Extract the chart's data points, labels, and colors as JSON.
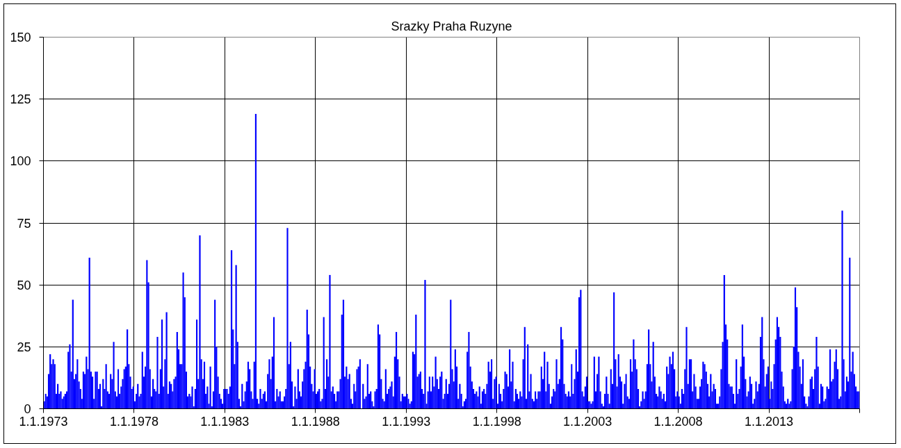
{
  "chart_data": {
    "type": "bar",
    "title": "Srazky Praha Ruzyne",
    "color": "#0000ff",
    "grid": true,
    "xlim": [
      "1973-01-01",
      "2018-01-01"
    ],
    "xticks": [
      {
        "value": "1973-01-01",
        "label": "1.1.1973"
      },
      {
        "value": "1978-01-01",
        "label": "1.1.1978"
      },
      {
        "value": "1983-01-01",
        "label": "1.1.1983"
      },
      {
        "value": "1988-01-01",
        "label": "1.1.1988"
      },
      {
        "value": "1993-01-01",
        "label": "1.1.1993"
      },
      {
        "value": "1998-01-01",
        "label": "1.1.1998"
      },
      {
        "value": "2003-01-01",
        "label": "1.1.2003"
      },
      {
        "value": "2008-01-01",
        "label": "1.1.2008"
      },
      {
        "value": "2013-01-01",
        "label": "1.1.2013"
      },
      {
        "value": "2018-01-01",
        "label": null
      }
    ],
    "ylim": [
      0,
      150
    ],
    "yticks": [
      0,
      25,
      50,
      75,
      100,
      125,
      150
    ],
    "x": [
      "1973-01",
      "1973-02",
      "1973-03",
      "1973-04",
      "1973-05",
      "1973-06",
      "1973-07",
      "1973-08",
      "1973-09",
      "1973-10",
      "1973-11",
      "1973-12",
      "1974-01",
      "1974-02",
      "1974-03",
      "1974-04",
      "1974-05",
      "1974-06",
      "1974-07",
      "1974-08",
      "1974-09",
      "1974-10",
      "1974-11",
      "1974-12",
      "1975-01",
      "1975-02",
      "1975-03",
      "1975-04",
      "1975-05",
      "1975-06",
      "1975-07",
      "1975-08",
      "1975-09",
      "1975-10",
      "1975-11",
      "1975-12",
      "1976-01",
      "1976-02",
      "1976-03",
      "1976-04",
      "1976-05",
      "1976-06",
      "1976-07",
      "1976-08",
      "1976-09",
      "1976-10",
      "1976-11",
      "1976-12",
      "1977-01",
      "1977-02",
      "1977-03",
      "1977-04",
      "1977-05",
      "1977-06",
      "1977-07",
      "1977-08",
      "1977-09",
      "1977-10",
      "1977-11",
      "1977-12",
      "1978-01",
      "1978-02",
      "1978-03",
      "1978-04",
      "1978-05",
      "1978-06",
      "1978-07",
      "1978-08",
      "1978-09",
      "1978-10",
      "1978-11",
      "1978-12",
      "1979-01",
      "1979-02",
      "1979-03",
      "1979-04",
      "1979-05",
      "1979-06",
      "1979-07",
      "1979-08",
      "1979-09",
      "1979-10",
      "1979-11",
      "1979-12",
      "1980-01",
      "1980-02",
      "1980-03",
      "1980-04",
      "1980-05",
      "1980-06",
      "1980-07",
      "1980-08",
      "1980-09",
      "1980-10",
      "1980-11",
      "1980-12",
      "1981-01",
      "1981-02",
      "1981-03",
      "1981-04",
      "1981-05",
      "1981-06",
      "1981-07",
      "1981-08",
      "1981-09",
      "1981-10",
      "1981-11",
      "1981-12",
      "1982-01",
      "1982-02",
      "1982-03",
      "1982-04",
      "1982-05",
      "1982-06",
      "1982-07",
      "1982-08",
      "1982-09",
      "1982-10",
      "1982-11",
      "1982-12",
      "1983-01",
      "1983-02",
      "1983-03",
      "1983-04",
      "1983-05",
      "1983-06",
      "1983-07",
      "1983-08",
      "1983-09",
      "1983-10",
      "1983-11",
      "1983-12",
      "1984-01",
      "1984-02",
      "1984-03",
      "1984-04",
      "1984-05",
      "1984-06",
      "1984-07",
      "1984-08",
      "1984-09",
      "1984-10",
      "1984-11",
      "1984-12",
      "1985-01",
      "1985-02",
      "1985-03",
      "1985-04",
      "1985-05",
      "1985-06",
      "1985-07",
      "1985-08",
      "1985-09",
      "1985-10",
      "1985-11",
      "1985-12",
      "1986-01",
      "1986-02",
      "1986-03",
      "1986-04",
      "1986-05",
      "1986-06",
      "1986-07",
      "1986-08",
      "1986-09",
      "1986-10",
      "1986-11",
      "1986-12",
      "1987-01",
      "1987-02",
      "1987-03",
      "1987-04",
      "1987-05",
      "1987-06",
      "1987-07",
      "1987-08",
      "1987-09",
      "1987-10",
      "1987-11",
      "1987-12",
      "1988-01",
      "1988-02",
      "1988-03",
      "1988-04",
      "1988-05",
      "1988-06",
      "1988-07",
      "1988-08",
      "1988-09",
      "1988-10",
      "1988-11",
      "1988-12",
      "1989-01",
      "1989-02",
      "1989-03",
      "1989-04",
      "1989-05",
      "1989-06",
      "1989-07",
      "1989-08",
      "1989-09",
      "1989-10",
      "1989-11",
      "1989-12",
      "1990-01",
      "1990-02",
      "1990-03",
      "1990-04",
      "1990-05",
      "1990-06",
      "1990-07",
      "1990-08",
      "1990-09",
      "1990-10",
      "1990-11",
      "1990-12",
      "1991-01",
      "1991-02",
      "1991-03",
      "1991-04",
      "1991-05",
      "1991-06",
      "1991-07",
      "1991-08",
      "1991-09",
      "1991-10",
      "1991-11",
      "1991-12",
      "1992-01",
      "1992-02",
      "1992-03",
      "1992-04",
      "1992-05",
      "1992-06",
      "1992-07",
      "1992-08",
      "1992-09",
      "1992-10",
      "1992-11",
      "1992-12",
      "1993-01",
      "1993-02",
      "1993-03",
      "1993-04",
      "1993-05",
      "1993-06",
      "1993-07",
      "1993-08",
      "1993-09",
      "1993-10",
      "1993-11",
      "1993-12",
      "1994-01",
      "1994-02",
      "1994-03",
      "1994-04",
      "1994-05",
      "1994-06",
      "1994-07",
      "1994-08",
      "1994-09",
      "1994-10",
      "1994-11",
      "1994-12",
      "1995-01",
      "1995-02",
      "1995-03",
      "1995-04",
      "1995-05",
      "1995-06",
      "1995-07",
      "1995-08",
      "1995-09",
      "1995-10",
      "1995-11",
      "1995-12",
      "1996-01",
      "1996-02",
      "1996-03",
      "1996-04",
      "1996-05",
      "1996-06",
      "1996-07",
      "1996-08",
      "1996-09",
      "1996-10",
      "1996-11",
      "1996-12",
      "1997-01",
      "1997-02",
      "1997-03",
      "1997-04",
      "1997-05",
      "1997-06",
      "1997-07",
      "1997-08",
      "1997-09",
      "1997-10",
      "1997-11",
      "1997-12",
      "1998-01",
      "1998-02",
      "1998-03",
      "1998-04",
      "1998-05",
      "1998-06",
      "1998-07",
      "1998-08",
      "1998-09",
      "1998-10",
      "1998-11",
      "1998-12",
      "1999-01",
      "1999-02",
      "1999-03",
      "1999-04",
      "1999-05",
      "1999-06",
      "1999-07",
      "1999-08",
      "1999-09",
      "1999-10",
      "1999-11",
      "1999-12",
      "2000-01",
      "2000-02",
      "2000-03",
      "2000-04",
      "2000-05",
      "2000-06",
      "2000-07",
      "2000-08",
      "2000-09",
      "2000-10",
      "2000-11",
      "2000-12",
      "2001-01",
      "2001-02",
      "2001-03",
      "2001-04",
      "2001-05",
      "2001-06",
      "2001-07",
      "2001-08",
      "2001-09",
      "2001-10",
      "2001-11",
      "2001-12",
      "2002-01",
      "2002-02",
      "2002-03",
      "2002-04",
      "2002-05",
      "2002-06",
      "2002-07",
      "2002-08",
      "2002-09",
      "2002-10",
      "2002-11",
      "2002-12",
      "2003-01",
      "2003-02",
      "2003-03",
      "2003-04",
      "2003-05",
      "2003-06",
      "2003-07",
      "2003-08",
      "2003-09",
      "2003-10",
      "2003-11",
      "2003-12",
      "2004-01",
      "2004-02",
      "2004-03",
      "2004-04",
      "2004-05",
      "2004-06",
      "2004-07",
      "2004-08",
      "2004-09",
      "2004-10",
      "2004-11",
      "2004-12",
      "2005-01",
      "2005-02",
      "2005-03",
      "2005-04",
      "2005-05",
      "2005-06",
      "2005-07",
      "2005-08",
      "2005-09",
      "2005-10",
      "2005-11",
      "2005-12",
      "2006-01",
      "2006-02",
      "2006-03",
      "2006-04",
      "2006-05",
      "2006-06",
      "2006-07",
      "2006-08",
      "2006-09",
      "2006-10",
      "2006-11",
      "2006-12",
      "2007-01",
      "2007-02",
      "2007-03",
      "2007-04",
      "2007-05",
      "2007-06",
      "2007-07",
      "2007-08",
      "2007-09",
      "2007-10",
      "2007-11",
      "2007-12",
      "2008-01",
      "2008-02",
      "2008-03",
      "2008-04",
      "2008-05",
      "2008-06",
      "2008-07",
      "2008-08",
      "2008-09",
      "2008-10",
      "2008-11",
      "2008-12",
      "2009-01",
      "2009-02",
      "2009-03",
      "2009-04",
      "2009-05",
      "2009-06",
      "2009-07",
      "2009-08",
      "2009-09",
      "2009-10",
      "2009-11",
      "2009-12",
      "2010-01",
      "2010-02",
      "2010-03",
      "2010-04",
      "2010-05",
      "2010-06",
      "2010-07",
      "2010-08",
      "2010-09",
      "2010-10",
      "2010-11",
      "2010-12",
      "2011-01",
      "2011-02",
      "2011-03",
      "2011-04",
      "2011-05",
      "2011-06",
      "2011-07",
      "2011-08",
      "2011-09",
      "2011-10",
      "2011-11",
      "2011-12",
      "2012-01",
      "2012-02",
      "2012-03",
      "2012-04",
      "2012-05",
      "2012-06",
      "2012-07",
      "2012-08",
      "2012-09",
      "2012-10",
      "2012-11",
      "2012-12",
      "2013-01",
      "2013-02",
      "2013-03",
      "2013-04",
      "2013-05",
      "2013-06",
      "2013-07",
      "2013-08",
      "2013-09",
      "2013-10",
      "2013-11",
      "2013-12",
      "2014-01",
      "2014-02",
      "2014-03",
      "2014-04",
      "2014-05",
      "2014-06",
      "2014-07",
      "2014-08",
      "2014-09",
      "2014-10",
      "2014-11",
      "2014-12",
      "2015-01",
      "2015-02",
      "2015-03",
      "2015-04",
      "2015-05",
      "2015-06",
      "2015-07",
      "2015-08",
      "2015-09",
      "2015-10",
      "2015-11",
      "2015-12",
      "2016-01",
      "2016-02",
      "2016-03",
      "2016-04",
      "2016-05",
      "2016-06",
      "2016-07",
      "2016-08",
      "2016-09",
      "2016-10",
      "2016-11",
      "2016-12",
      "2017-01",
      "2017-02",
      "2017-03",
      "2017-04",
      "2017-05",
      "2017-06",
      "2017-07",
      "2017-08",
      "2017-09",
      "2017-10",
      "2017-11",
      "2017-12"
    ],
    "values": [
      3,
      6,
      5,
      14,
      22,
      18,
      20,
      18,
      6,
      10,
      6,
      7,
      4,
      5,
      6,
      7,
      23,
      26,
      15,
      44,
      12,
      14,
      20,
      11,
      8,
      4,
      15,
      14,
      21,
      16,
      61,
      15,
      13,
      4,
      15,
      15,
      8,
      10,
      1,
      12,
      8,
      18,
      7,
      6,
      14,
      12,
      27,
      7,
      5,
      16,
      6,
      9,
      12,
      16,
      17,
      32,
      18,
      13,
      8,
      9,
      3,
      6,
      10,
      5,
      6,
      23,
      13,
      17,
      60,
      51,
      16,
      5,
      12,
      8,
      7,
      29,
      6,
      16,
      36,
      9,
      20,
      39,
      6,
      11,
      10,
      7,
      12,
      13,
      31,
      24,
      18,
      18,
      55,
      45,
      15,
      5,
      6,
      5,
      9,
      1,
      8,
      36,
      12,
      70,
      20,
      12,
      19,
      6,
      9,
      2,
      17,
      1,
      7,
      44,
      25,
      13,
      6,
      4,
      2,
      8,
      8,
      8,
      6,
      9,
      64,
      32,
      18,
      58,
      27,
      4,
      1,
      10,
      3,
      7,
      11,
      19,
      16,
      7,
      4,
      19,
      119,
      4,
      2,
      8,
      4,
      6,
      7,
      3,
      14,
      20,
      12,
      21,
      37,
      3,
      8,
      5,
      7,
      3,
      3,
      5,
      8,
      73,
      18,
      27,
      11,
      1,
      9,
      4,
      16,
      7,
      5,
      11,
      16,
      19,
      40,
      30,
      17,
      10,
      7,
      16,
      6,
      7,
      8,
      3,
      4,
      37,
      8,
      20,
      13,
      54,
      7,
      9,
      6,
      3,
      7,
      7,
      12,
      38,
      44,
      13,
      17,
      12,
      14,
      4,
      2,
      10,
      7,
      16,
      17,
      20,
      0,
      10,
      4,
      5,
      18,
      6,
      7,
      3,
      1,
      7,
      8,
      34,
      30,
      12,
      4,
      3,
      16,
      6,
      8,
      9,
      11,
      5,
      21,
      31,
      20,
      13,
      3,
      6,
      5,
      5,
      6,
      4,
      2,
      3,
      23,
      22,
      38,
      13,
      14,
      15,
      8,
      6,
      52,
      2,
      7,
      13,
      7,
      13,
      9,
      21,
      12,
      8,
      13,
      15,
      4,
      6,
      12,
      6,
      10,
      44,
      16,
      11,
      24,
      17,
      4,
      10,
      6,
      1,
      3,
      4,
      23,
      31,
      17,
      11,
      8,
      6,
      7,
      5,
      9,
      2,
      7,
      8,
      6,
      10,
      19,
      15,
      20,
      4,
      12,
      13,
      2,
      10,
      6,
      3,
      8,
      15,
      14,
      9,
      24,
      11,
      19,
      3,
      8,
      6,
      4,
      7,
      5,
      20,
      33,
      4,
      26,
      7,
      14,
      4,
      3,
      7,
      4,
      7,
      7,
      17,
      12,
      23,
      7,
      19,
      10,
      2,
      5,
      8,
      7,
      20,
      10,
      12,
      33,
      28,
      10,
      6,
      5,
      7,
      5,
      18,
      6,
      12,
      24,
      15,
      45,
      48,
      7,
      5,
      9,
      13,
      3,
      3,
      2,
      3,
      21,
      7,
      14,
      21,
      7,
      2,
      1,
      6,
      13,
      6,
      2,
      16,
      10,
      47,
      20,
      9,
      22,
      13,
      11,
      2,
      10,
      14,
      5,
      4,
      20,
      15,
      28,
      20,
      16,
      8,
      1,
      3,
      7,
      4,
      7,
      18,
      32,
      18,
      11,
      27,
      13,
      6,
      5,
      9,
      7,
      4,
      6,
      3,
      17,
      14,
      21,
      18,
      23,
      16,
      5,
      7,
      5,
      2,
      8,
      6,
      16,
      33,
      10,
      20,
      20,
      7,
      14,
      9,
      4,
      4,
      9,
      12,
      19,
      18,
      15,
      10,
      5,
      14,
      7,
      10,
      8,
      2,
      2,
      5,
      16,
      27,
      54,
      34,
      28,
      10,
      9,
      9,
      6,
      2,
      20,
      6,
      8,
      17,
      34,
      21,
      12,
      5,
      7,
      13,
      10,
      2,
      4,
      11,
      7,
      10,
      29,
      37,
      20,
      9,
      14,
      17,
      4,
      11,
      8,
      18,
      28,
      37,
      33,
      29,
      15,
      9,
      3,
      2,
      4,
      2,
      3,
      16,
      25,
      49,
      41,
      23,
      17,
      10,
      20,
      5,
      2,
      1,
      5,
      12,
      13,
      8,
      16,
      29,
      17,
      2,
      10,
      9,
      3,
      4,
      9,
      8,
      24,
      11,
      12,
      19,
      24,
      16,
      4,
      5,
      80,
      20,
      7,
      13,
      11,
      61,
      15,
      23,
      14,
      9,
      7,
      7
    ]
  }
}
